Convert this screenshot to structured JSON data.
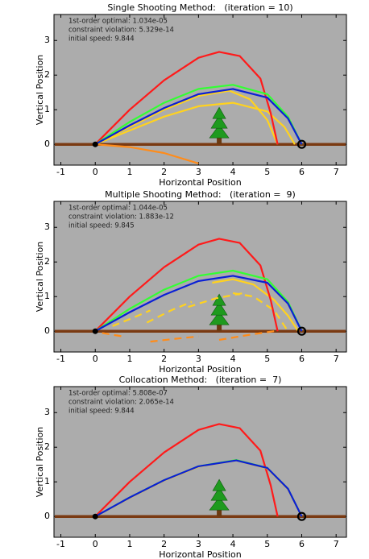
{
  "chart_data": [
    {
      "type": "line",
      "title": "Single Shooting Method:   (iteration = 10)",
      "xlabel": "Horizontal Position",
      "ylabel": "Vertical Position",
      "annotations": [
        "1st-order optimal: 1.034e-05",
        "constraint violation: 5.329e-14",
        "initial speed: 9.844"
      ],
      "xlim": [
        -1.2,
        7.3
      ],
      "ylim": [
        -0.6,
        3.75
      ],
      "xticks": [
        -1,
        0,
        1,
        2,
        3,
        4,
        5,
        6,
        7
      ],
      "yticks": [
        0,
        1,
        2,
        3
      ],
      "series": [
        {
          "color": "#ff8c1a",
          "style": "solid",
          "x": [
            0,
            1,
            2,
            3
          ],
          "values": [
            0,
            -0.08,
            -0.25,
            -0.55
          ]
        },
        {
          "color": "#ffd21f",
          "style": "solid",
          "x": [
            0,
            1,
            2,
            3,
            4,
            5,
            5.5,
            5.8
          ],
          "values": [
            0,
            0.4,
            0.8,
            1.1,
            1.2,
            0.95,
            0.5,
            0
          ]
        },
        {
          "color": "#ffd21f",
          "style": "solid",
          "x": [
            0,
            1,
            2,
            3,
            3.9,
            4.5,
            5,
            5.3
          ],
          "values": [
            0,
            0.5,
            1.0,
            1.4,
            1.55,
            1.3,
            0.7,
            0
          ]
        },
        {
          "color": "#ff1a1a",
          "style": "solid",
          "x": [
            0,
            1,
            2,
            3,
            3.6,
            4.2,
            4.8,
            5.1,
            5.3
          ],
          "values": [
            0,
            1.0,
            1.85,
            2.5,
            2.67,
            2.55,
            1.9,
            0.9,
            0
          ]
        },
        {
          "color": "#33ff33",
          "style": "solid",
          "x": [
            0,
            1,
            2,
            3,
            4,
            5,
            5.6,
            6
          ],
          "values": [
            0,
            0.65,
            1.2,
            1.6,
            1.72,
            1.45,
            0.8,
            0
          ]
        },
        {
          "color": "#0a1fd6",
          "style": "solid",
          "x": [
            0,
            1,
            2,
            3,
            4,
            5,
            5.6,
            6
          ],
          "values": [
            0,
            0.55,
            1.05,
            1.45,
            1.6,
            1.35,
            0.75,
            0
          ]
        }
      ]
    },
    {
      "type": "line",
      "title": "Multiple Shooting Method:   (iteration =  9)",
      "xlabel": "Horizontal Position",
      "ylabel": "Vertical Position",
      "annotations": [
        "1st-order optimal: 1.044e-05",
        "constraint violation: 1.883e-12",
        "initial speed: 9.845"
      ],
      "xlim": [
        -1.2,
        7.3
      ],
      "ylim": [
        -0.6,
        3.75
      ],
      "xticks": [
        -1,
        0,
        1,
        2,
        3,
        4,
        5,
        6,
        7
      ],
      "yticks": [
        0,
        1,
        2,
        3
      ],
      "series": [
        {
          "color": "#ff8c1a",
          "style": "dashed",
          "x": [
            0.2,
            0.8,
            null,
            1.6,
            2.5,
            3,
            null,
            3.6,
            4.5,
            5.2
          ],
          "values": [
            -0.05,
            -0.15,
            null,
            -0.3,
            -0.2,
            -0.15,
            null,
            -0.25,
            -0.1,
            0
          ]
        },
        {
          "color": "#ffd21f",
          "style": "dashed",
          "x": [
            0.5,
            1,
            1.6,
            null,
            1.5,
            2.2,
            2.8,
            null,
            2.7,
            3.5,
            4.3,
            null,
            4.0,
            4.6,
            5.2,
            5.6
          ],
          "values": [
            0.15,
            0.35,
            0.6,
            null,
            0.25,
            0.6,
            0.85,
            null,
            0.7,
            0.95,
            1.1,
            null,
            1.1,
            1.0,
            0.6,
            0
          ]
        },
        {
          "color": "#ffd21f",
          "style": "solid",
          "x": [
            3.4,
            4,
            4.6,
            5.2,
            5.6,
            5.9
          ],
          "values": [
            1.4,
            1.5,
            1.35,
            0.9,
            0.45,
            0
          ]
        },
        {
          "color": "#ff1a1a",
          "style": "solid",
          "x": [
            0,
            1,
            2,
            3,
            3.6,
            4.2,
            4.8,
            5.1,
            5.3
          ],
          "values": [
            0,
            1.0,
            1.85,
            2.5,
            2.67,
            2.55,
            1.9,
            0.9,
            0
          ]
        },
        {
          "color": "#33ff33",
          "style": "solid",
          "x": [
            0,
            1,
            2,
            3,
            4,
            5,
            5.6,
            6
          ],
          "values": [
            0,
            0.65,
            1.2,
            1.6,
            1.75,
            1.5,
            0.85,
            0
          ]
        },
        {
          "color": "#0a1fd6",
          "style": "solid",
          "x": [
            0,
            1,
            2,
            3,
            4,
            5,
            5.6,
            6
          ],
          "values": [
            0,
            0.55,
            1.05,
            1.45,
            1.6,
            1.4,
            0.8,
            0
          ]
        }
      ]
    },
    {
      "type": "line",
      "title": "Collocation Method:   (iteration =  7)",
      "xlabel": "Horizontal Position",
      "ylabel": "Vertical Position",
      "annotations": [
        "1st-order optimal: 5.808e-07",
        "constraint violation: 2.065e-14",
        "initial speed: 9.844"
      ],
      "xlim": [
        -1.2,
        7.3
      ],
      "ylim": [
        -0.6,
        3.75
      ],
      "xticks": [
        -1,
        0,
        1,
        2,
        3,
        4,
        5,
        6,
        7
      ],
      "yticks": [
        0,
        1,
        2,
        3
      ],
      "series": [
        {
          "color": "#ff1a1a",
          "style": "solid",
          "x": [
            0,
            1,
            2,
            3,
            3.6,
            4.2,
            4.8,
            5.1,
            5.3
          ],
          "values": [
            0,
            1.0,
            1.85,
            2.5,
            2.67,
            2.55,
            1.9,
            0.9,
            0
          ]
        },
        {
          "color": "#33ff33",
          "style": "solid",
          "x": [
            0,
            1,
            2,
            3,
            4.1,
            5,
            5.6,
            6
          ],
          "values": [
            0,
            0.55,
            1.05,
            1.45,
            1.63,
            1.4,
            0.8,
            0
          ]
        },
        {
          "color": "#ffd21f",
          "style": "solid",
          "x": [
            0,
            1,
            2,
            3,
            4.1,
            5,
            5.6,
            6
          ],
          "values": [
            0,
            0.54,
            1.04,
            1.44,
            1.62,
            1.39,
            0.79,
            0
          ]
        },
        {
          "color": "#0a1fd6",
          "style": "solid",
          "x": [
            0,
            1,
            2,
            3,
            4.1,
            5,
            5.6,
            6
          ],
          "values": [
            0,
            0.55,
            1.05,
            1.45,
            1.62,
            1.4,
            0.8,
            0
          ]
        }
      ]
    }
  ]
}
